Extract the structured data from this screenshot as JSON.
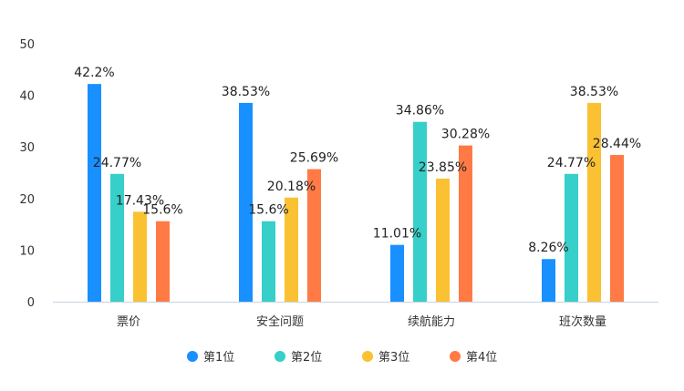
{
  "chart_data": {
    "type": "bar",
    "categories": [
      "票价",
      "安全问题",
      "续航能力",
      "班次数量"
    ],
    "series": [
      {
        "name": "第1位",
        "color": "#1890FF",
        "values": [
          42.2,
          38.53,
          11.01,
          8.26
        ],
        "labels": [
          "42.2%",
          "38.53%",
          "11.01%",
          "8.26%"
        ]
      },
      {
        "name": "第2位",
        "color": "#36CFC9",
        "values": [
          24.77,
          15.6,
          34.86,
          24.77
        ],
        "labels": [
          "24.77%",
          "15.6%",
          "34.86%",
          "24.77%"
        ]
      },
      {
        "name": "第3位",
        "color": "#FAC132",
        "values": [
          17.43,
          20.18,
          23.85,
          38.53
        ],
        "labels": [
          "17.43%",
          "20.18%",
          "23.85%",
          "38.53%"
        ]
      },
      {
        "name": "第4位",
        "color": "#FF7A45",
        "values": [
          15.6,
          25.69,
          30.28,
          28.44
        ],
        "labels": [
          "15.6%",
          "25.69%",
          "30.28%",
          "28.44%"
        ]
      }
    ],
    "ylim": [
      0,
      50
    ],
    "yticks": [
      "0",
      "10",
      "20",
      "30",
      "40",
      "50"
    ],
    "grid": false,
    "legend": "bottom-center"
  }
}
